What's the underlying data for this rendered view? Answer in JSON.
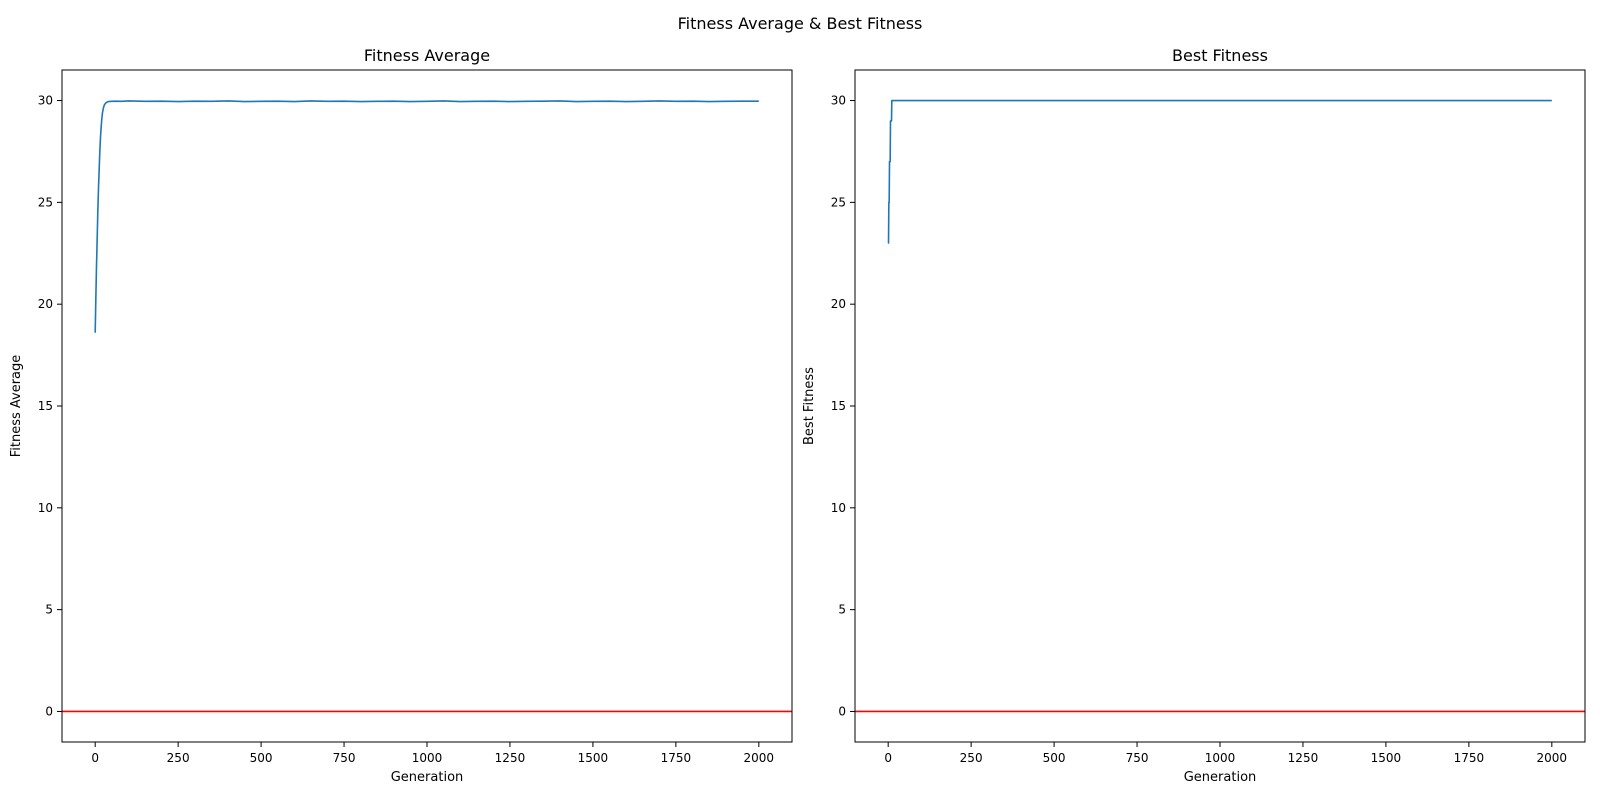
{
  "figure": {
    "suptitle": "Fitness Average & Best Fitness"
  },
  "colors": {
    "series": "#1f77b4",
    "reference_line": "#ff0000",
    "axes": "#000000",
    "background": "#ffffff"
  },
  "chart_data": [
    {
      "type": "line",
      "title": "Fitness Average",
      "xlabel": "Generation",
      "ylabel": "Fitness Average",
      "xlim": [
        -100,
        2100
      ],
      "ylim": [
        -1.5,
        31.5
      ],
      "xticks": [
        0,
        250,
        500,
        750,
        1000,
        1250,
        1500,
        1750,
        2000
      ],
      "yticks": [
        0,
        5,
        10,
        15,
        20,
        25,
        30
      ],
      "grid": false,
      "legend": "none",
      "reference_line": {
        "y": 0
      },
      "series": [
        {
          "x": [
            0,
            2,
            4,
            6,
            8,
            10,
            12,
            14,
            16,
            18,
            20,
            22,
            25,
            28,
            32,
            36,
            40,
            50,
            60,
            80,
            100,
            150,
            200,
            250,
            300,
            350,
            400,
            450,
            500,
            550,
            600,
            650,
            700,
            750,
            800,
            850,
            900,
            950,
            1000,
            1050,
            1100,
            1150,
            1200,
            1250,
            1300,
            1350,
            1400,
            1450,
            1500,
            1550,
            1600,
            1650,
            1700,
            1750,
            1800,
            1850,
            1900,
            1950,
            2000
          ],
          "y": [
            18.6,
            20.3,
            21.9,
            23.2,
            24.6,
            25.7,
            26.6,
            27.5,
            28.2,
            28.7,
            29.1,
            29.4,
            29.65,
            29.8,
            29.88,
            29.93,
            29.95,
            29.96,
            29.97,
            29.96,
            29.98,
            29.96,
            29.97,
            29.95,
            29.97,
            29.96,
            29.98,
            29.95,
            29.96,
            29.97,
            29.95,
            29.98,
            29.96,
            29.97,
            29.95,
            29.96,
            29.97,
            29.95,
            29.96,
            29.98,
            29.95,
            29.96,
            29.97,
            29.95,
            29.96,
            29.97,
            29.98,
            29.95,
            29.96,
            29.97,
            29.95,
            29.96,
            29.98,
            29.96,
            29.97,
            29.95,
            29.96,
            29.97,
            29.97
          ]
        }
      ]
    },
    {
      "type": "line",
      "title": "Best Fitness",
      "xlabel": "Generation",
      "ylabel": "Best Fitness",
      "xlim": [
        -100,
        2100
      ],
      "ylim": [
        -1.5,
        31.5
      ],
      "xticks": [
        0,
        250,
        500,
        750,
        1000,
        1250,
        1500,
        1750,
        2000
      ],
      "yticks": [
        0,
        5,
        10,
        15,
        20,
        25,
        30
      ],
      "grid": false,
      "legend": "none",
      "reference_line": {
        "y": 0
      },
      "series": [
        {
          "x": [
            0,
            1,
            2,
            3,
            4,
            5,
            6,
            7,
            8,
            9,
            10,
            11,
            12,
            2000
          ],
          "y": [
            23,
            23,
            25,
            25,
            27,
            27,
            27,
            29,
            29,
            29,
            29,
            30,
            30,
            30
          ]
        }
      ]
    }
  ]
}
